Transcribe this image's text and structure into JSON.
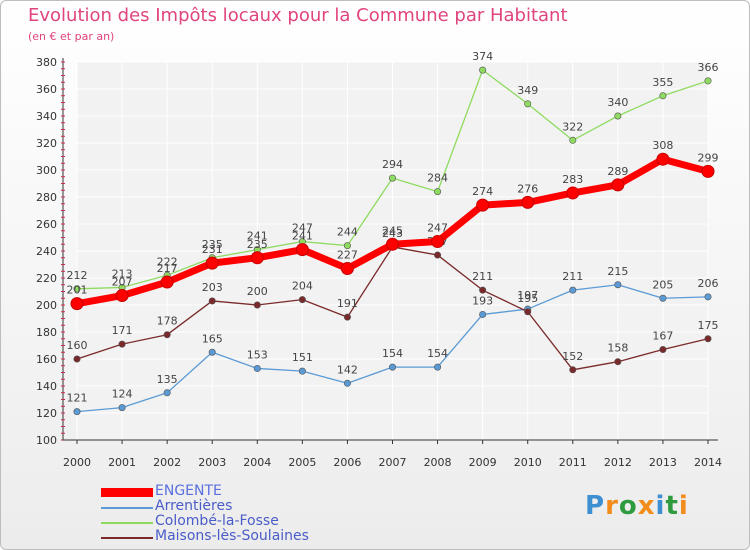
{
  "header": {
    "title": "Evolution des Impôts locaux pour la Commune par Habitant",
    "subtitle": "(en € et par an)"
  },
  "chart_data": {
    "type": "line",
    "x": [
      2000,
      2001,
      2002,
      2003,
      2004,
      2005,
      2006,
      2007,
      2008,
      2009,
      2010,
      2011,
      2012,
      2013,
      2014
    ],
    "ylim": [
      100,
      380
    ],
    "yticks": [
      100,
      120,
      140,
      160,
      180,
      200,
      220,
      240,
      260,
      280,
      300,
      320,
      340,
      360,
      380
    ],
    "grid": true,
    "legend_position": "bottom-left",
    "series": [
      {
        "name": "ENGENTE",
        "color": "#ff0000",
        "values": [
          201,
          207,
          217,
          231,
          235,
          241,
          227,
          245,
          247,
          274,
          276,
          283,
          289,
          308,
          299
        ]
      },
      {
        "name": "Arrentières",
        "color": "#5b9bd5",
        "values": [
          121,
          124,
          135,
          165,
          153,
          151,
          142,
          154,
          154,
          193,
          197,
          211,
          215,
          205,
          206
        ]
      },
      {
        "name": "Colombé-la-Fosse",
        "color": "#8edb60",
        "values": [
          212,
          213,
          222,
          235,
          241,
          247,
          244,
          294,
          284,
          374,
          349,
          322,
          340,
          355,
          366
        ]
      },
      {
        "name": "Maisons-lès-Soulaines",
        "color": "#7a2a2a",
        "values": [
          160,
          171,
          178,
          203,
          200,
          204,
          191,
          243,
          237,
          211,
          195,
          152,
          158,
          167,
          175
        ]
      }
    ]
  },
  "logo": {
    "text": "Proxiti",
    "colors": [
      "#3d8fd1",
      "#f28c1a",
      "#2e9b3e",
      "#f28c1a",
      "#3d8fd1",
      "#2e9b3e",
      "#f28c1a"
    ]
  }
}
